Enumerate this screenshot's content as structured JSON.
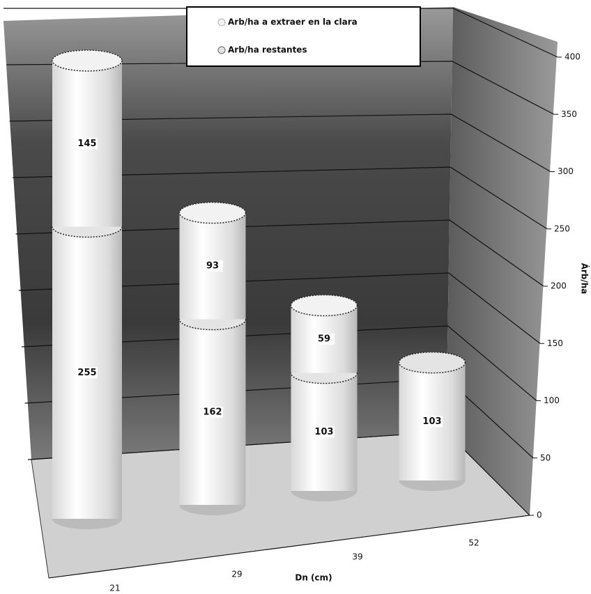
{
  "chart_data": {
    "type": "bar3d-cylinder-stacked",
    "categories": [
      "21",
      "29",
      "39",
      "52"
    ],
    "series": [
      {
        "name": "Arb/ha restantes",
        "color": "#e4e4e4",
        "values": [
          255,
          162,
          103,
          103
        ]
      },
      {
        "name": "Arb/ha a extraer en la clara",
        "color": "#f2f2f2",
        "values": [
          145,
          93,
          59,
          null
        ]
      }
    ],
    "xlabel": "Dn (cm)",
    "ylabel": "Árb/ha",
    "ylim": [
      0,
      400
    ],
    "yticks": [
      0,
      50,
      100,
      150,
      200,
      250,
      300,
      350,
      400
    ],
    "grid": true,
    "legend": "top"
  }
}
